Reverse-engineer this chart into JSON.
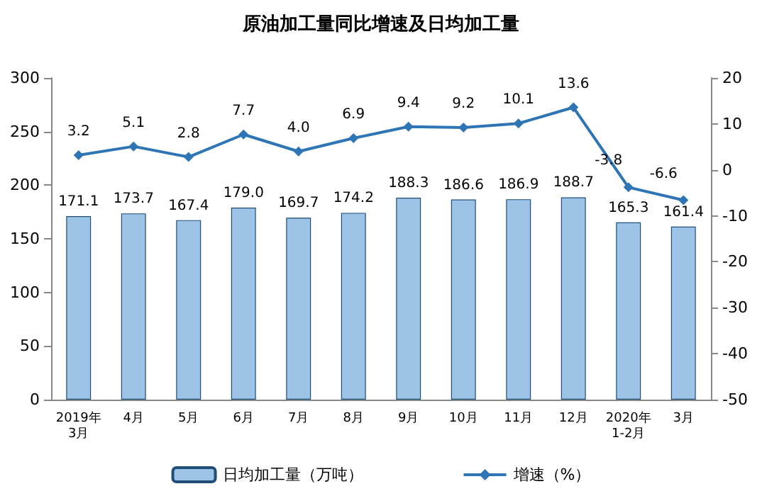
{
  "chart_data": {
    "type": "bar",
    "title": "原油加工量同比增速及日均加工量",
    "categories": [
      "2019年\n3月",
      "4月",
      "5月",
      "6月",
      "7月",
      "8月",
      "9月",
      "10月",
      "11月",
      "12月",
      "2020年\n1-2月",
      "3月"
    ],
    "series": [
      {
        "name": "日均加工量（万吨）",
        "color": "#9dc3e6",
        "values": [
          171.1,
          173.7,
          167.4,
          179.0,
          169.7,
          174.2,
          188.3,
          186.6,
          186.9,
          188.7,
          165.3,
          161.4
        ],
        "value_labels": [
          "171.1",
          "173.7",
          "167.4",
          "179.0",
          "169.7",
          "174.2",
          "188.3",
          "186.6",
          "186.9",
          "188.7",
          "165.3",
          "161.4"
        ]
      },
      {
        "name": "增速（%）",
        "type": "line",
        "axis": "y2",
        "color": "#2e75b6",
        "values": [
          3.2,
          5.1,
          2.8,
          7.7,
          4.0,
          6.9,
          9.4,
          9.2,
          10.1,
          13.6,
          -3.8,
          -6.6
        ],
        "value_labels": [
          "3.2",
          "5.1",
          "2.8",
          "7.7",
          "4.0",
          "6.9",
          "9.4",
          "9.2",
          "10.1",
          "13.6",
          "-3.8",
          "-6.6"
        ]
      }
    ],
    "ylim": [
      0,
      300
    ],
    "yticks": [
      0,
      50,
      100,
      150,
      200,
      250,
      300
    ],
    "y2lim": [
      -50,
      20
    ],
    "y2ticks": [
      -50,
      -40,
      -30,
      -20,
      -10,
      0,
      10,
      20
    ],
    "legend": "bottom",
    "grid": false,
    "marker": "diamond"
  }
}
